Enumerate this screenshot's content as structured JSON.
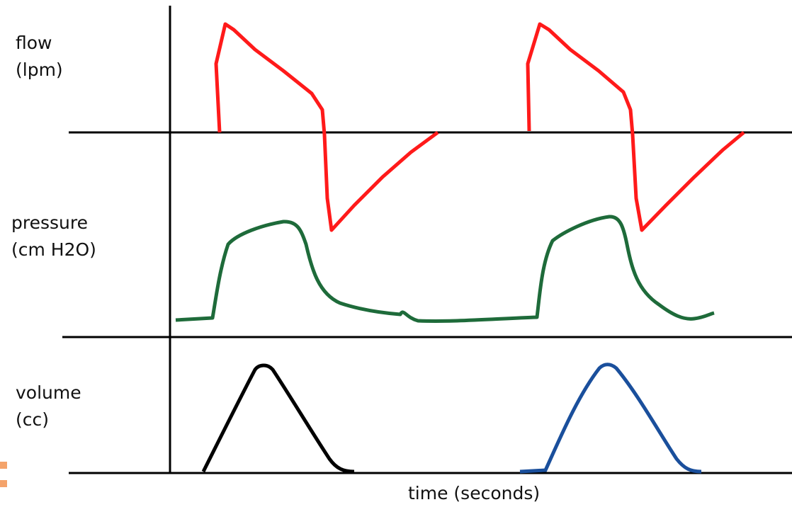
{
  "labels": {
    "flow_line1": "flow",
    "flow_line2": "(lpm)",
    "pressure_line1": "pressure",
    "pressure_line2": "(cm H2O)",
    "volume_line1": "volume",
    "volume_line2": "(cc)",
    "time": "time (seconds)"
  },
  "colors": {
    "flow": "#ff1a1a",
    "pressure": "#1e6b3a",
    "volume_breath_1": "#000000",
    "volume_breath_2": "#1a4f9c",
    "axes": "#000000",
    "bullet": "#f4a36b"
  },
  "icons": [
    "bullet-square",
    "bullet-square"
  ]
}
